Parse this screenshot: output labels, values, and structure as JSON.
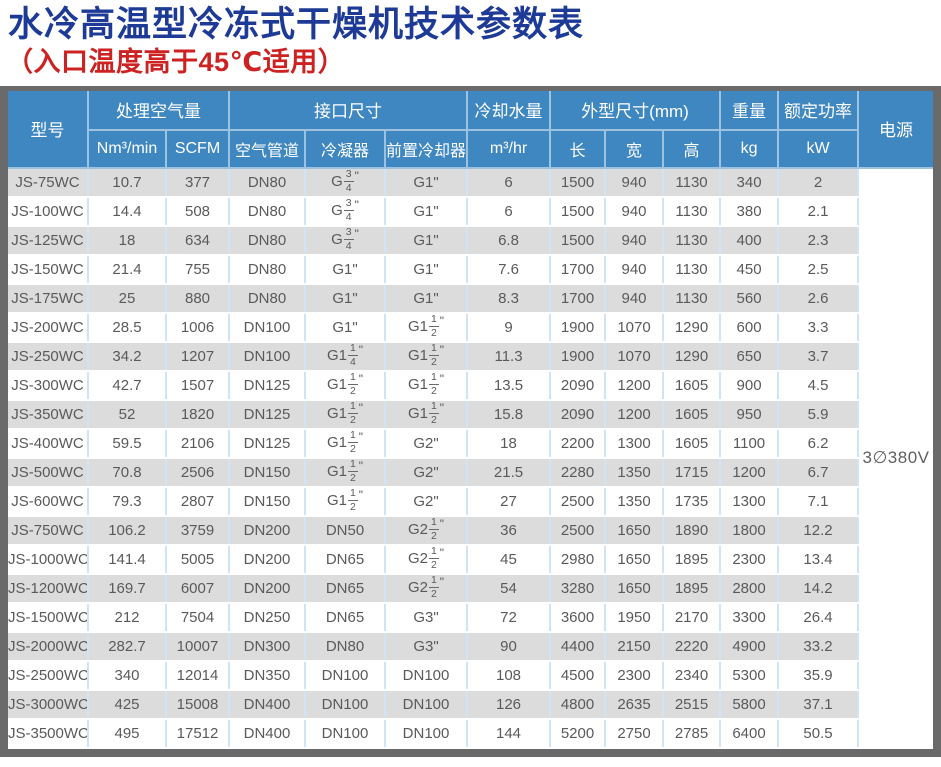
{
  "title": "水冷高温型冷冻式干燥机技术参数表",
  "subtitle": "（入口温度高于45℃适用）",
  "colors": {
    "title_blue": "#1d3b96",
    "subtitle_red": "#cd2222",
    "header_blue": "#3f87c1",
    "stripe_gray": "#dcdcdc",
    "frame_gray": "#6a6a6a",
    "body_text": "#5a5a5a"
  },
  "table": {
    "header": {
      "model": "型号",
      "air_volume": "处理空气量",
      "nm3min": "Nm³/min",
      "scfm": "SCFM",
      "interface": "接口尺寸",
      "air_pipe": "空气管道",
      "condenser": "冷凝器",
      "precooler": "前置冷却器",
      "cooling_water": "冷却水量",
      "m3hr": "m³/hr",
      "dimensions": "外型尺寸(mm)",
      "length": "长",
      "width": "宽",
      "height": "高",
      "weight": "重量",
      "kg": "kg",
      "rated_power": "额定功率",
      "kw": "kW",
      "power_supply": "电源"
    },
    "power_supply_value": "3∅380V",
    "rows": [
      [
        "JS-75WC",
        "10.7",
        "377",
        "DN80",
        "G 3/4\"",
        "G1\"",
        "6",
        "1500",
        "940",
        "1130",
        "340",
        "2"
      ],
      [
        "JS-100WC",
        "14.4",
        "508",
        "DN80",
        "G 3/4\"",
        "G1\"",
        "6",
        "1500",
        "940",
        "1130",
        "380",
        "2.1"
      ],
      [
        "JS-125WC",
        "18",
        "634",
        "DN80",
        "G 3/4\"",
        "G1\"",
        "6.8",
        "1500",
        "940",
        "1130",
        "400",
        "2.3"
      ],
      [
        "JS-150WC",
        "21.4",
        "755",
        "DN80",
        "G1\"",
        "G1\"",
        "7.6",
        "1700",
        "940",
        "1130",
        "450",
        "2.5"
      ],
      [
        "JS-175WC",
        "25",
        "880",
        "DN80",
        "G1\"",
        "G1\"",
        "8.3",
        "1700",
        "940",
        "1130",
        "560",
        "2.6"
      ],
      [
        "JS-200WC",
        "28.5",
        "1006",
        "DN100",
        "G1\"",
        "G1 1/2\"",
        "9",
        "1900",
        "1070",
        "1290",
        "600",
        "3.3"
      ],
      [
        "JS-250WC",
        "34.2",
        "1207",
        "DN100",
        "G1 1/4\"",
        "G1 1/2\"",
        "11.3",
        "1900",
        "1070",
        "1290",
        "650",
        "3.7"
      ],
      [
        "JS-300WC",
        "42.7",
        "1507",
        "DN125",
        "G1 1/2\"",
        "G1 1/2\"",
        "13.5",
        "2090",
        "1200",
        "1605",
        "900",
        "4.5"
      ],
      [
        "JS-350WC",
        "52",
        "1820",
        "DN125",
        "G1 1/2\"",
        "G1 1/2\"",
        "15.8",
        "2090",
        "1200",
        "1605",
        "950",
        "5.9"
      ],
      [
        "JS-400WC",
        "59.5",
        "2106",
        "DN125",
        "G1 1/2\"",
        "G2\"",
        "18",
        "2200",
        "1300",
        "1605",
        "1100",
        "6.2"
      ],
      [
        "JS-500WC",
        "70.8",
        "2506",
        "DN150",
        "G1 1/2\"",
        "G2\"",
        "21.5",
        "2280",
        "1350",
        "1715",
        "1200",
        "6.7"
      ],
      [
        "JS-600WC",
        "79.3",
        "2807",
        "DN150",
        "G1 1/2\"",
        "G2\"",
        "27",
        "2500",
        "1350",
        "1735",
        "1300",
        "7.1"
      ],
      [
        "JS-750WC",
        "106.2",
        "3759",
        "DN200",
        "DN50",
        "G2 1/2\"",
        "36",
        "2500",
        "1650",
        "1890",
        "1800",
        "12.2"
      ],
      [
        "JS-1000WC",
        "141.4",
        "5005",
        "DN200",
        "DN65",
        "G2 1/2\"",
        "45",
        "2980",
        "1650",
        "1895",
        "2300",
        "13.4"
      ],
      [
        "JS-1200WC",
        "169.7",
        "6007",
        "DN200",
        "DN65",
        "G2 1/2\"",
        "54",
        "3280",
        "1650",
        "1895",
        "2800",
        "14.2"
      ],
      [
        "JS-1500WC",
        "212",
        "7504",
        "DN250",
        "DN65",
        "G3\"",
        "72",
        "3600",
        "1950",
        "2170",
        "3300",
        "26.4"
      ],
      [
        "JS-2000WC",
        "282.7",
        "10007",
        "DN300",
        "DN80",
        "G3\"",
        "90",
        "4400",
        "2150",
        "2220",
        "4900",
        "33.2"
      ],
      [
        "JS-2500WC",
        "340",
        "12014",
        "DN350",
        "DN100",
        "DN100",
        "108",
        "4500",
        "2300",
        "2340",
        "5300",
        "35.9"
      ],
      [
        "JS-3000WC",
        "425",
        "15008",
        "DN400",
        "DN100",
        "DN100",
        "126",
        "4800",
        "2635",
        "2515",
        "5800",
        "37.1"
      ],
      [
        "JS-3500WC",
        "495",
        "17512",
        "DN400",
        "DN100",
        "DN100",
        "144",
        "5200",
        "2750",
        "2785",
        "6400",
        "50.5"
      ]
    ]
  }
}
